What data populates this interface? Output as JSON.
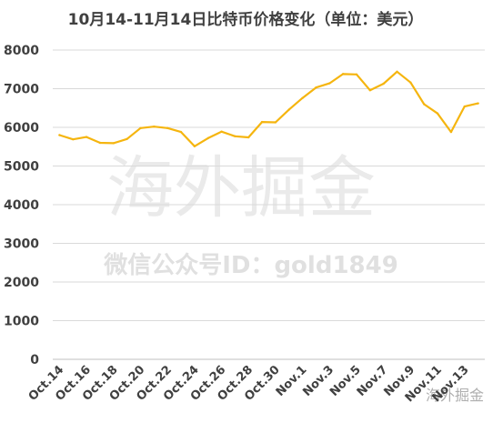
{
  "chart_data": {
    "type": "line",
    "title": "10月14-11月14日比特币价格变化（单位：美元）",
    "xlabel": "",
    "ylabel": "",
    "ylim": [
      0,
      8000
    ],
    "yticks": [
      0,
      1000,
      2000,
      3000,
      4000,
      5000,
      6000,
      7000,
      8000
    ],
    "grid": "horizontal",
    "color": "#F5B50F",
    "x": [
      "Oct.14",
      "Oct.15",
      "Oct.16",
      "Oct.17",
      "Oct.18",
      "Oct.19",
      "Oct.20",
      "Oct.21",
      "Oct.22",
      "Oct.23",
      "Oct.24",
      "Oct.25",
      "Oct.26",
      "Oct.27",
      "Oct.28",
      "Oct.29",
      "Oct.30",
      "Oct.31",
      "Nov.1",
      "Nov.2",
      "Nov.3",
      "Nov.4",
      "Nov.5",
      "Nov.6",
      "Nov.7",
      "Nov.8",
      "Nov.9",
      "Nov.10",
      "Nov.11",
      "Nov.12",
      "Nov.13",
      "Nov.14"
    ],
    "x_tick_labels": [
      "Oct.14",
      "Oct.16",
      "Oct.18",
      "Oct.20",
      "Oct.22",
      "Oct.24",
      "Oct.26",
      "Oct.28",
      "Oct.30",
      "Nov.1",
      "Nov.3",
      "Nov.5",
      "Nov.7",
      "Nov.9",
      "Nov.11",
      "Nov.13"
    ],
    "series": [
      {
        "values": [
          5800,
          5690,
          5750,
          5600,
          5590,
          5700,
          5980,
          6020,
          5980,
          5880,
          5510,
          5720,
          5890,
          5770,
          5740,
          6140,
          6130,
          6460,
          6760,
          7030,
          7140,
          7380,
          7370,
          6960,
          7130,
          7440,
          7160,
          6600,
          6360,
          5880,
          6540,
          6620
        ]
      }
    ]
  },
  "watermark": {
    "main": "海外掘金",
    "id_line": "微信公众号ID：gold1849",
    "corner": "海外掘金"
  }
}
